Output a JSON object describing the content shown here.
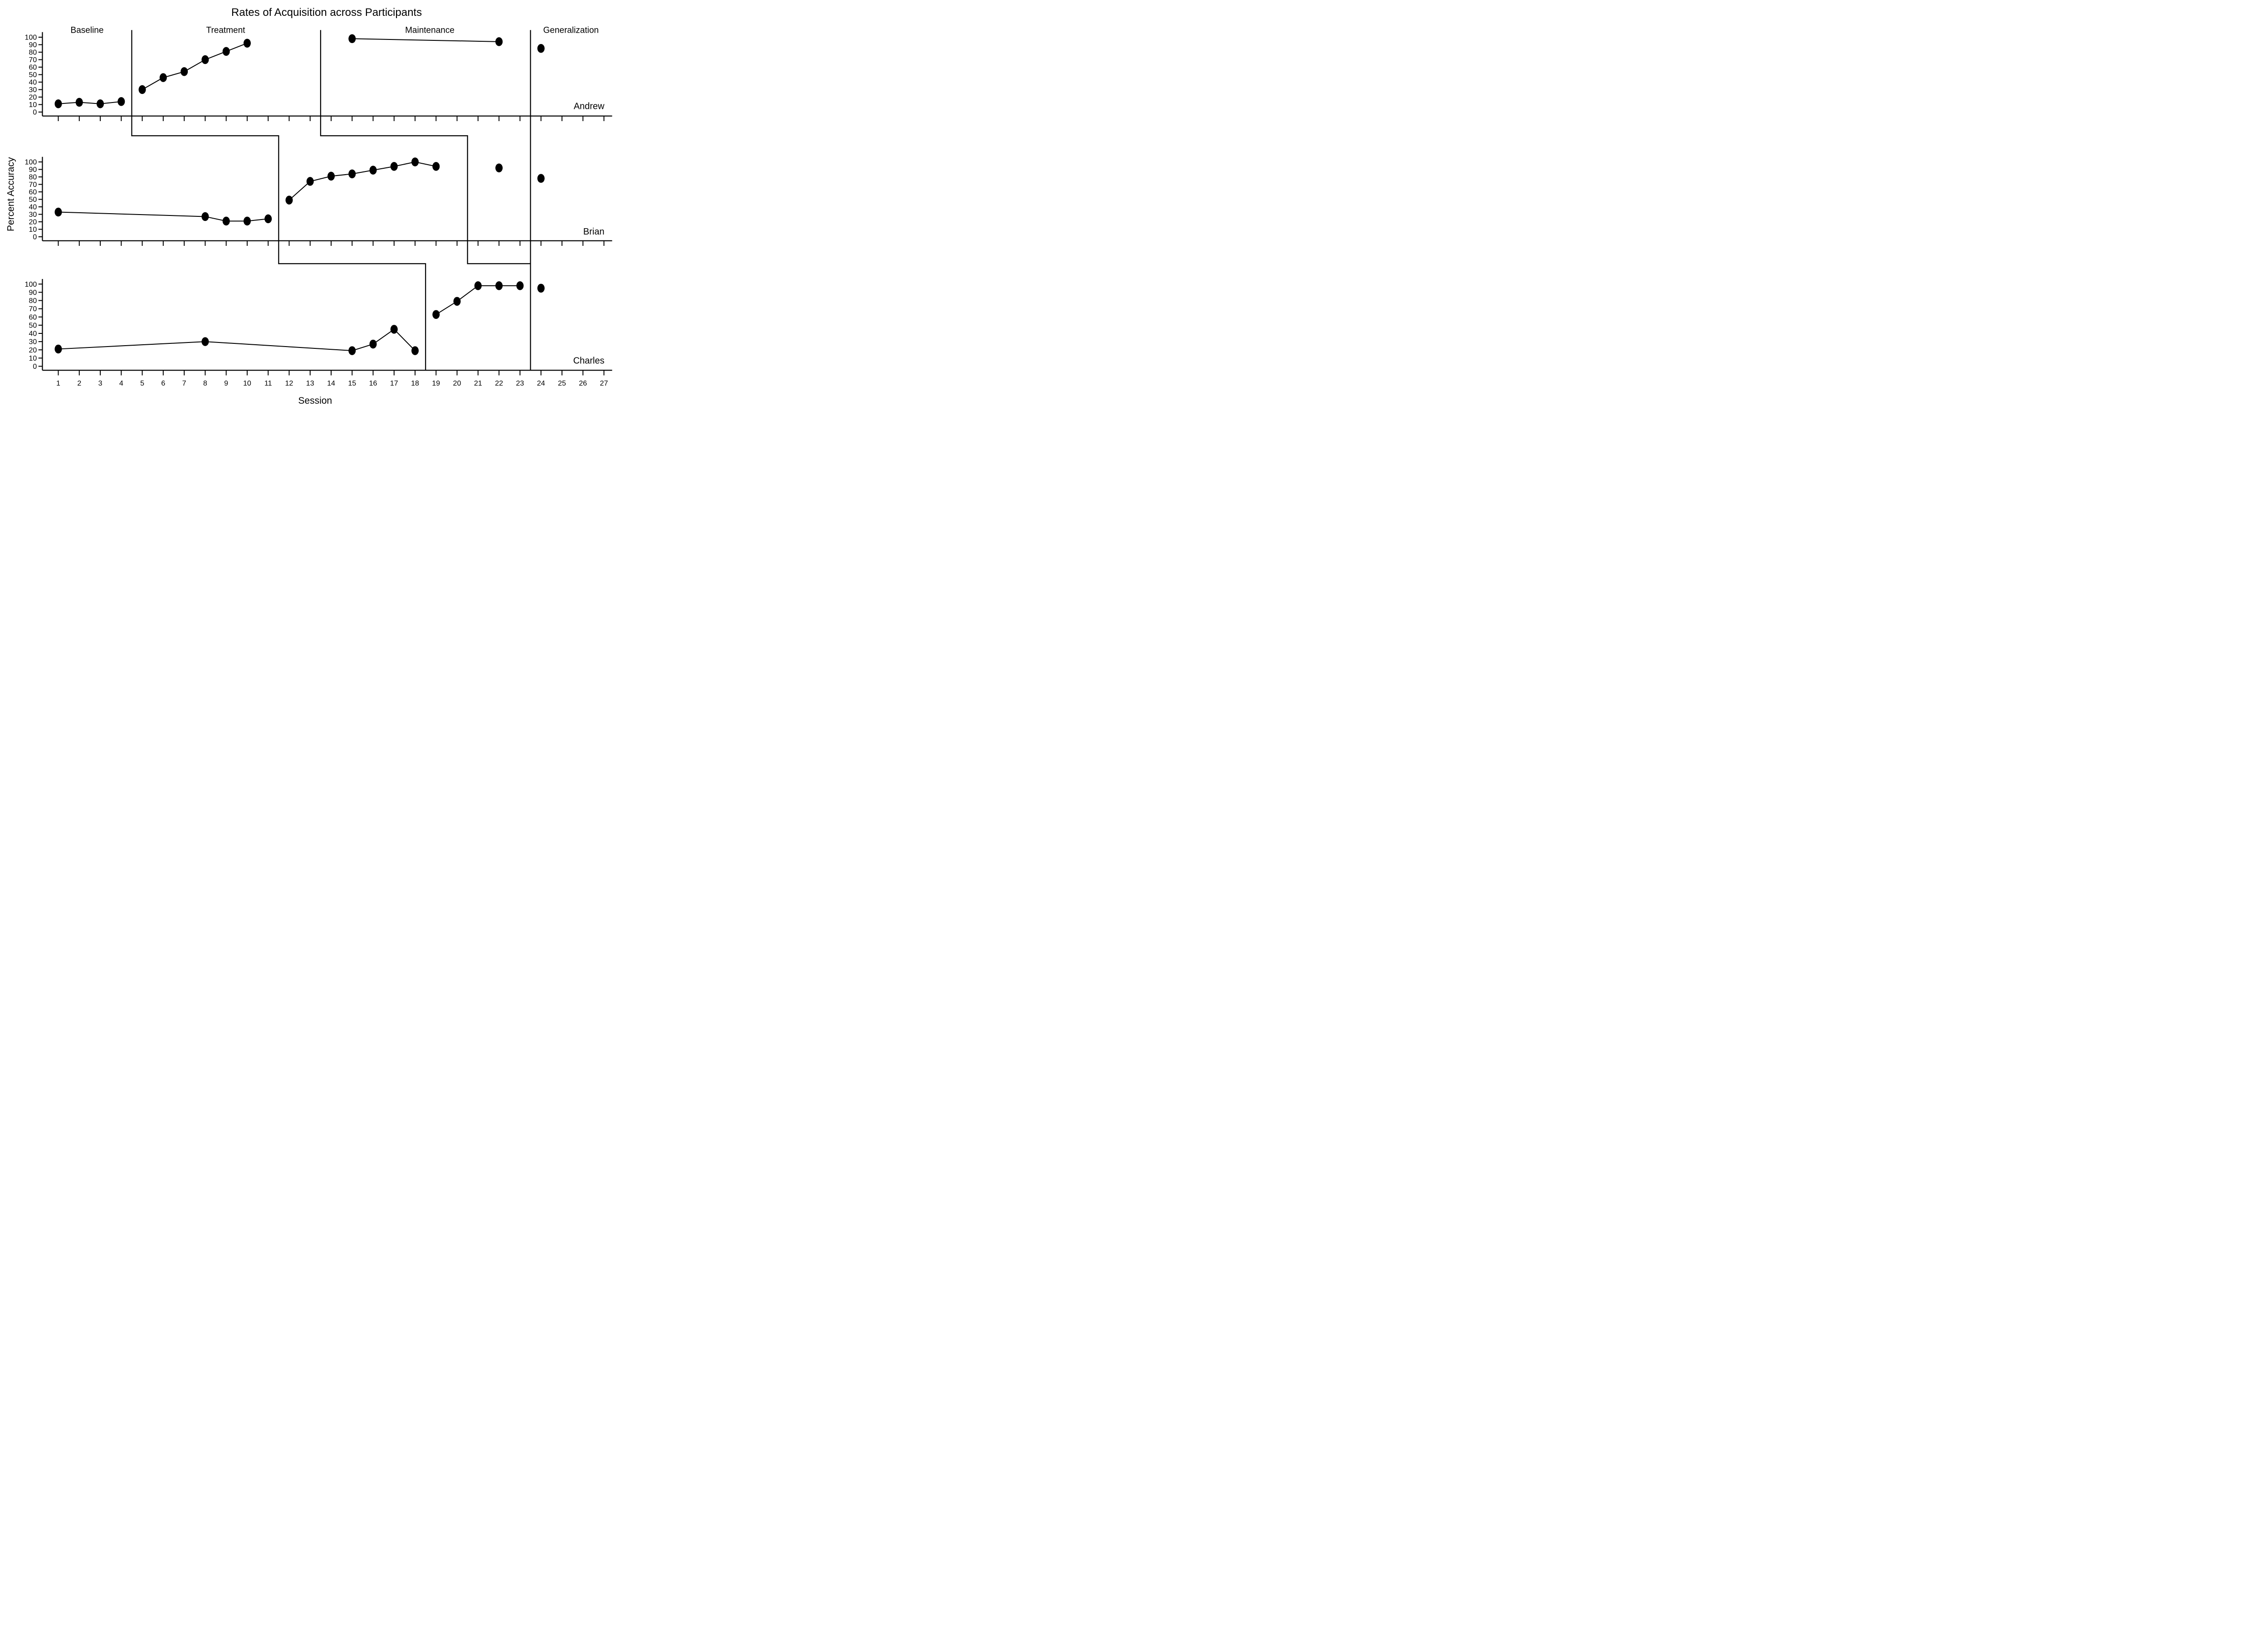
{
  "chart_data": {
    "type": "line",
    "title": "Rates of Acquisition across Participants",
    "xlabel": "Session",
    "ylabel": "Percent Accuracy",
    "ylim": [
      0,
      100
    ],
    "y_tick_step": 10,
    "x_range": [
      1,
      27
    ],
    "grid": "off",
    "legend": "none",
    "marker": "filled-circle",
    "line_color": "#000000",
    "phase_labels": [
      "Baseline",
      "Treatment",
      "Maintenance",
      "Generalization"
    ],
    "phase_change_sessions": {
      "treatment_start": [
        4.5,
        11.5,
        18.5
      ],
      "maintenance_start": [
        13.5,
        20.5,
        null
      ],
      "generalization_start": [
        23.5,
        23.5,
        23.5
      ]
    },
    "panels": [
      {
        "participant": "Andrew",
        "series": [
          {
            "name": "baseline",
            "points": [
              [
                1,
                11
              ],
              [
                2,
                13
              ],
              [
                3,
                11
              ],
              [
                4,
                14
              ]
            ]
          },
          {
            "name": "treatment",
            "points": [
              [
                5,
                30
              ],
              [
                6,
                46
              ],
              [
                7,
                54
              ],
              [
                8,
                70
              ],
              [
                9,
                81
              ],
              [
                10,
                92
              ]
            ]
          },
          {
            "name": "maintenance",
            "points": [
              [
                15,
                98
              ],
              [
                22,
                94
              ]
            ]
          },
          {
            "name": "generalization",
            "points": [
              [
                24,
                85
              ]
            ]
          }
        ]
      },
      {
        "participant": "Brian",
        "series": [
          {
            "name": "baseline",
            "points": [
              [
                1,
                33
              ],
              [
                8,
                27
              ],
              [
                9,
                21
              ],
              [
                10,
                21
              ],
              [
                11,
                24
              ]
            ]
          },
          {
            "name": "treatment",
            "points": [
              [
                12,
                49
              ],
              [
                13,
                74
              ],
              [
                14,
                81
              ],
              [
                15,
                84
              ],
              [
                16,
                89
              ],
              [
                17,
                94
              ],
              [
                18,
                100
              ],
              [
                19,
                94
              ]
            ]
          },
          {
            "name": "maintenance",
            "points": [
              [
                22,
                92
              ]
            ]
          },
          {
            "name": "generalization",
            "points": [
              [
                24,
                78
              ]
            ]
          }
        ]
      },
      {
        "participant": "Charles",
        "series": [
          {
            "name": "baseline",
            "points": [
              [
                1,
                21
              ],
              [
                8,
                30
              ],
              [
                15,
                19
              ],
              [
                16,
                27
              ],
              [
                17,
                45
              ],
              [
                18,
                19
              ]
            ]
          },
          {
            "name": "treatment",
            "points": [
              [
                19,
                63
              ],
              [
                20,
                79
              ],
              [
                21,
                98
              ],
              [
                22,
                98
              ],
              [
                23,
                98
              ]
            ]
          },
          {
            "name": "generalization",
            "points": [
              [
                24,
                95
              ]
            ]
          }
        ]
      }
    ]
  }
}
